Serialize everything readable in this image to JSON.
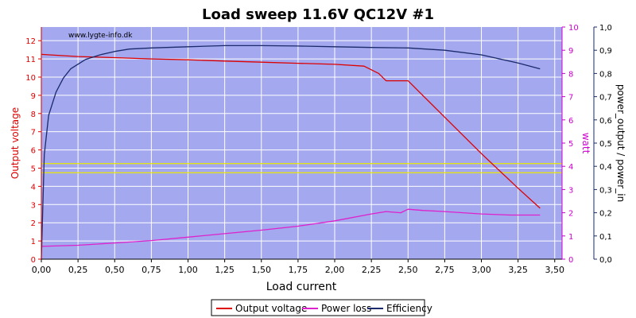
{
  "chart_data": {
    "type": "line",
    "title": "Load sweep 11.6V QC12V #1",
    "watermark": "www.lygte-info.dk",
    "xlabel": "Load current",
    "ylabel_left": "Output voltage",
    "ylabel_right1": "watt",
    "ylabel_right2": "power_output / power_in",
    "xlim": [
      0,
      3.55
    ],
    "ylim_left": [
      0,
      12.75
    ],
    "ylim_right1": [
      0,
      10
    ],
    "ylim_right2": [
      0,
      1.0
    ],
    "grid": true,
    "legend_position": "bottom-center",
    "colors": {
      "plot_bg": "#a4a8ee",
      "grid": "#ffffff",
      "voltage": "#dd0000",
      "power_loss": "#dd22cc",
      "efficiency": "#1a2a6a",
      "axis_left": "#dd0000",
      "axis_right1": "#cc00cc",
      "axis_right2": "#1a2a6a",
      "limit_lines": "#e8e800"
    },
    "x_ticks": [
      "0,00",
      "0,25",
      "0,50",
      "0,75",
      "1,00",
      "1,25",
      "1,50",
      "1,75",
      "2,00",
      "2,25",
      "2,50",
      "2,75",
      "3,00",
      "3,25",
      "3,50"
    ],
    "x_tick_values": [
      0,
      0.25,
      0.5,
      0.75,
      1.0,
      1.25,
      1.5,
      1.75,
      2.0,
      2.25,
      2.5,
      2.75,
      3.0,
      3.25,
      3.5
    ],
    "y_left_ticks": [
      "0",
      "1",
      "2",
      "3",
      "4",
      "5",
      "6",
      "7",
      "8",
      "9",
      "10",
      "11",
      "12"
    ],
    "y_right1_ticks": [
      "0",
      "1",
      "2",
      "3",
      "4",
      "5",
      "6",
      "7",
      "8",
      "9",
      "10"
    ],
    "y_right2_ticks": [
      "0,0",
      "0,1",
      "0,2",
      "0,3",
      "0,4",
      "0,5",
      "0,6",
      "0,7",
      "0,8",
      "0,9",
      "1,0"
    ],
    "limit_lines": [
      5.25,
      4.75
    ],
    "series": [
      {
        "name": "Output voltage",
        "axis": "left",
        "x": [
          0,
          0.1,
          0.25,
          0.5,
          0.75,
          1.0,
          1.25,
          1.5,
          1.75,
          2.0,
          2.2,
          2.3,
          2.35,
          2.4,
          2.45,
          2.5,
          2.6,
          2.75,
          3.0,
          3.25,
          3.4
        ],
        "y": [
          11.25,
          11.2,
          11.13,
          11.07,
          11.0,
          10.95,
          10.88,
          10.82,
          10.76,
          10.7,
          10.6,
          10.2,
          9.8,
          9.8,
          9.8,
          9.8,
          9.0,
          7.8,
          5.8,
          3.9,
          2.8
        ]
      },
      {
        "name": "Power loss",
        "axis": "right1",
        "x": [
          0,
          0.25,
          0.5,
          0.75,
          1.0,
          1.25,
          1.5,
          1.75,
          2.0,
          2.25,
          2.35,
          2.45,
          2.5,
          2.6,
          2.75,
          3.0,
          3.2,
          3.4
        ],
        "y": [
          0.55,
          0.6,
          0.7,
          0.8,
          0.95,
          1.1,
          1.25,
          1.42,
          1.65,
          1.95,
          2.05,
          2.0,
          2.15,
          2.1,
          2.05,
          1.95,
          1.9,
          1.9
        ]
      },
      {
        "name": "Efficiency",
        "axis": "right2",
        "x": [
          0,
          0.02,
          0.05,
          0.1,
          0.15,
          0.2,
          0.3,
          0.4,
          0.5,
          0.6,
          0.75,
          1.0,
          1.25,
          1.5,
          1.75,
          2.0,
          2.25,
          2.5,
          2.75,
          3.0,
          3.25,
          3.4
        ],
        "y": [
          0.0,
          0.45,
          0.62,
          0.72,
          0.78,
          0.82,
          0.86,
          0.88,
          0.895,
          0.905,
          0.91,
          0.915,
          0.92,
          0.92,
          0.918,
          0.915,
          0.912,
          0.91,
          0.9,
          0.88,
          0.845,
          0.82
        ]
      }
    ]
  }
}
